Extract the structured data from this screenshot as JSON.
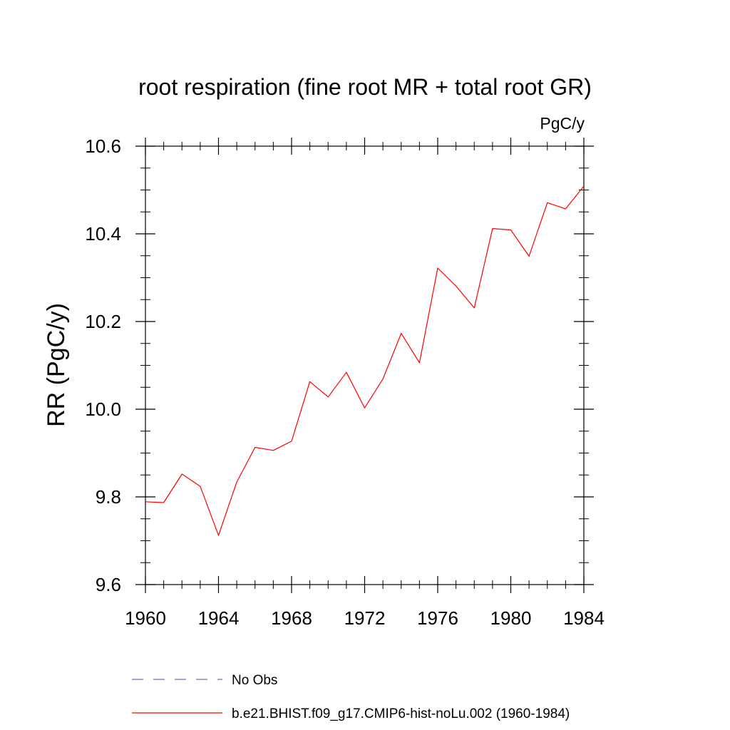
{
  "chart_data": {
    "type": "line",
    "title": "root respiration (fine root MR + total root GR)",
    "units": "PgC/y",
    "ylabel": "RR  (PgC/y)",
    "xlabel": "",
    "xlim": [
      1960,
      1984
    ],
    "ylim": [
      9.6,
      10.6
    ],
    "x_ticks": [
      1960,
      1964,
      1968,
      1972,
      1976,
      1980,
      1984
    ],
    "x_tick_labels": [
      "1960",
      "1964",
      "1968",
      "1972",
      "1976",
      "1980",
      "1984"
    ],
    "y_ticks": [
      9.6,
      9.8,
      10.0,
      10.2,
      10.4,
      10.6
    ],
    "y_tick_labels": [
      "9.6",
      "9.8",
      "10.0",
      "10.2",
      "10.4",
      "10.6"
    ],
    "grid": false,
    "legend_position": "bottom",
    "series": [
      {
        "name": "b.e21.BHIST.f09_g17.CMIP6-hist-noLu.002 (1960-1984)",
        "color": "#ff0000",
        "line_style": "solid",
        "x": [
          1960,
          1961,
          1962,
          1963,
          1964,
          1965,
          1966,
          1967,
          1968,
          1969,
          1970,
          1971,
          1972,
          1973,
          1974,
          1975,
          1976,
          1977,
          1978,
          1979,
          1980,
          1981,
          1982,
          1983,
          1984
        ],
        "y": [
          9.789,
          9.787,
          9.852,
          9.824,
          9.712,
          9.834,
          9.913,
          9.906,
          9.927,
          10.063,
          10.028,
          10.084,
          10.003,
          10.069,
          10.173,
          10.106,
          10.322,
          10.281,
          10.231,
          10.412,
          10.409,
          10.349,
          10.471,
          10.457,
          10.509
        ]
      }
    ],
    "legend": [
      {
        "label": "No Obs",
        "color": "#7b68c8",
        "line_style": "dashed"
      },
      {
        "label": "b.e21.BHIST.f09_g17.CMIP6-hist-noLu.002 (1960-1984)",
        "color": "#ff0000",
        "line_style": "solid"
      }
    ]
  }
}
